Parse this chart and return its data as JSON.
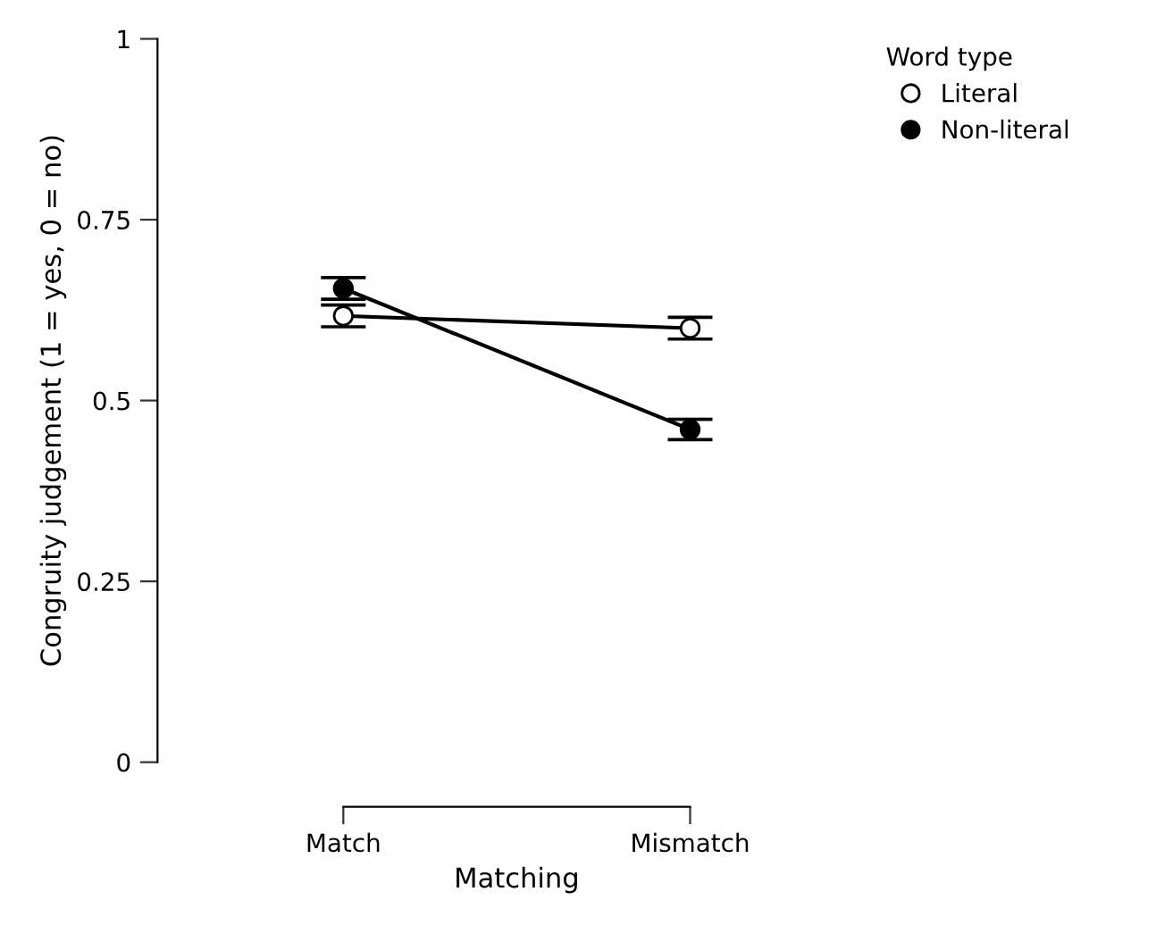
{
  "chart_data": {
    "type": "line",
    "xlabel": "Matching",
    "ylabel": "Congruity judgement (1 = yes, 0 = no)",
    "legend_title": "Word type",
    "categories": [
      "Match",
      "Mismatch"
    ],
    "series": [
      {
        "name": "Literal",
        "color": "#000000",
        "colors": [
          "#ffffff",
          "#ffffff"
        ],
        "values": [
          0.617,
          0.6
        ],
        "errors": [
          0.015,
          0.015
        ]
      },
      {
        "name": "Non-literal",
        "color": "#000000",
        "colors": [
          "#000000",
          "#000000"
        ],
        "values": [
          0.655,
          0.46
        ],
        "errors": [
          0.015,
          0.014
        ]
      }
    ],
    "ylim": [
      0,
      1
    ],
    "yticks": [
      0,
      {
        "value": 0.25,
        "label": "0.25"
      },
      {
        "value": 0.5,
        "label": "0.5"
      },
      {
        "value": 0.75,
        "label": "0.75"
      },
      1
    ],
    "marker": "circle",
    "line_style": "solid",
    "legend": "top right",
    "grid": false
  }
}
